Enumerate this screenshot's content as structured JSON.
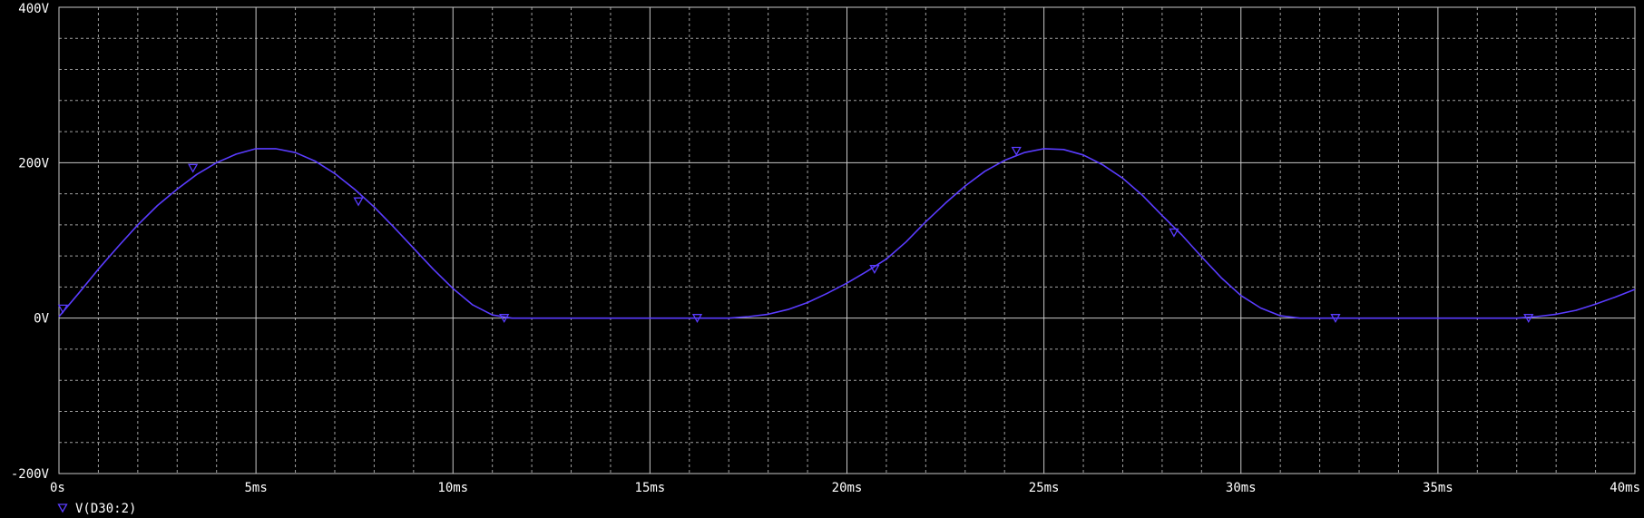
{
  "chart_data": {
    "type": "line",
    "title": "",
    "xlabel": "",
    "ylabel": "",
    "xlim": [
      0,
      40
    ],
    "ylim": [
      -200,
      400
    ],
    "x_unit": "ms",
    "y_unit": "V",
    "x_ticks": [
      {
        "value": 0,
        "label": "0s"
      },
      {
        "value": 5,
        "label": "5ms"
      },
      {
        "value": 10,
        "label": "10ms"
      },
      {
        "value": 15,
        "label": "15ms"
      },
      {
        "value": 20,
        "label": "20ms"
      },
      {
        "value": 25,
        "label": "25ms"
      },
      {
        "value": 30,
        "label": "30ms"
      },
      {
        "value": 35,
        "label": "35ms"
      },
      {
        "value": 40,
        "label": "40ms"
      }
    ],
    "y_ticks": [
      {
        "value": 400,
        "label": "400V"
      },
      {
        "value": 200,
        "label": "200V"
      },
      {
        "value": 0,
        "label": "0V"
      },
      {
        "value": -200,
        "label": "-200V"
      }
    ],
    "grid": true,
    "legend_position": "bottom-left",
    "colors": {
      "background": "#000000",
      "grid_major": "#c8c8c8",
      "grid_minor": "#a0a0a0",
      "text": "#ffffff",
      "trace": "#5a3cff"
    },
    "series": [
      {
        "name": "V(D30:2)",
        "marker": "triangle-down",
        "x": [
          0,
          0.5,
          1,
          1.5,
          2,
          2.5,
          3,
          3.5,
          4,
          4.5,
          5,
          5.5,
          6,
          6.5,
          7,
          7.5,
          8,
          8.5,
          9,
          9.5,
          10,
          10.5,
          11,
          11.5,
          12,
          13,
          14,
          15,
          16,
          16.5,
          17,
          17.5,
          18,
          18.5,
          19,
          19.5,
          20,
          20.5,
          21,
          21.5,
          22,
          22.5,
          23,
          23.5,
          24,
          24.5,
          25,
          25.5,
          26,
          26.5,
          27,
          27.5,
          28,
          28.5,
          29,
          29.5,
          30,
          30.5,
          31,
          31.5,
          32,
          33,
          34,
          35,
          36,
          36.5,
          37,
          37.5,
          38,
          38.5,
          39,
          39.5,
          40
        ],
        "values": [
          2,
          32,
          63,
          92,
          120,
          145,
          166,
          185,
          200,
          211,
          218,
          218,
          213,
          202,
          186,
          166,
          143,
          117,
          90,
          63,
          38,
          17,
          4,
          0,
          0,
          0,
          0,
          0,
          0,
          0,
          0,
          2,
          5,
          11,
          20,
          32,
          45,
          60,
          76,
          98,
          124,
          148,
          170,
          189,
          203,
          213,
          218,
          217,
          210,
          197,
          180,
          158,
          132,
          107,
          79,
          52,
          29,
          13,
          3,
          0,
          0,
          0,
          0,
          0,
          0,
          0,
          0,
          2,
          5,
          10,
          18,
          27,
          37
        ],
        "marker_points": [
          {
            "x": 0.1,
            "y": 12
          },
          {
            "x": 3.4,
            "y": 193
          },
          {
            "x": 7.6,
            "y": 150
          },
          {
            "x": 11.3,
            "y": 0
          },
          {
            "x": 16.2,
            "y": 0
          },
          {
            "x": 20.7,
            "y": 63
          },
          {
            "x": 24.3,
            "y": 215
          },
          {
            "x": 28.3,
            "y": 110
          },
          {
            "x": 32.4,
            "y": 0
          },
          {
            "x": 37.3,
            "y": 0
          }
        ]
      }
    ]
  }
}
